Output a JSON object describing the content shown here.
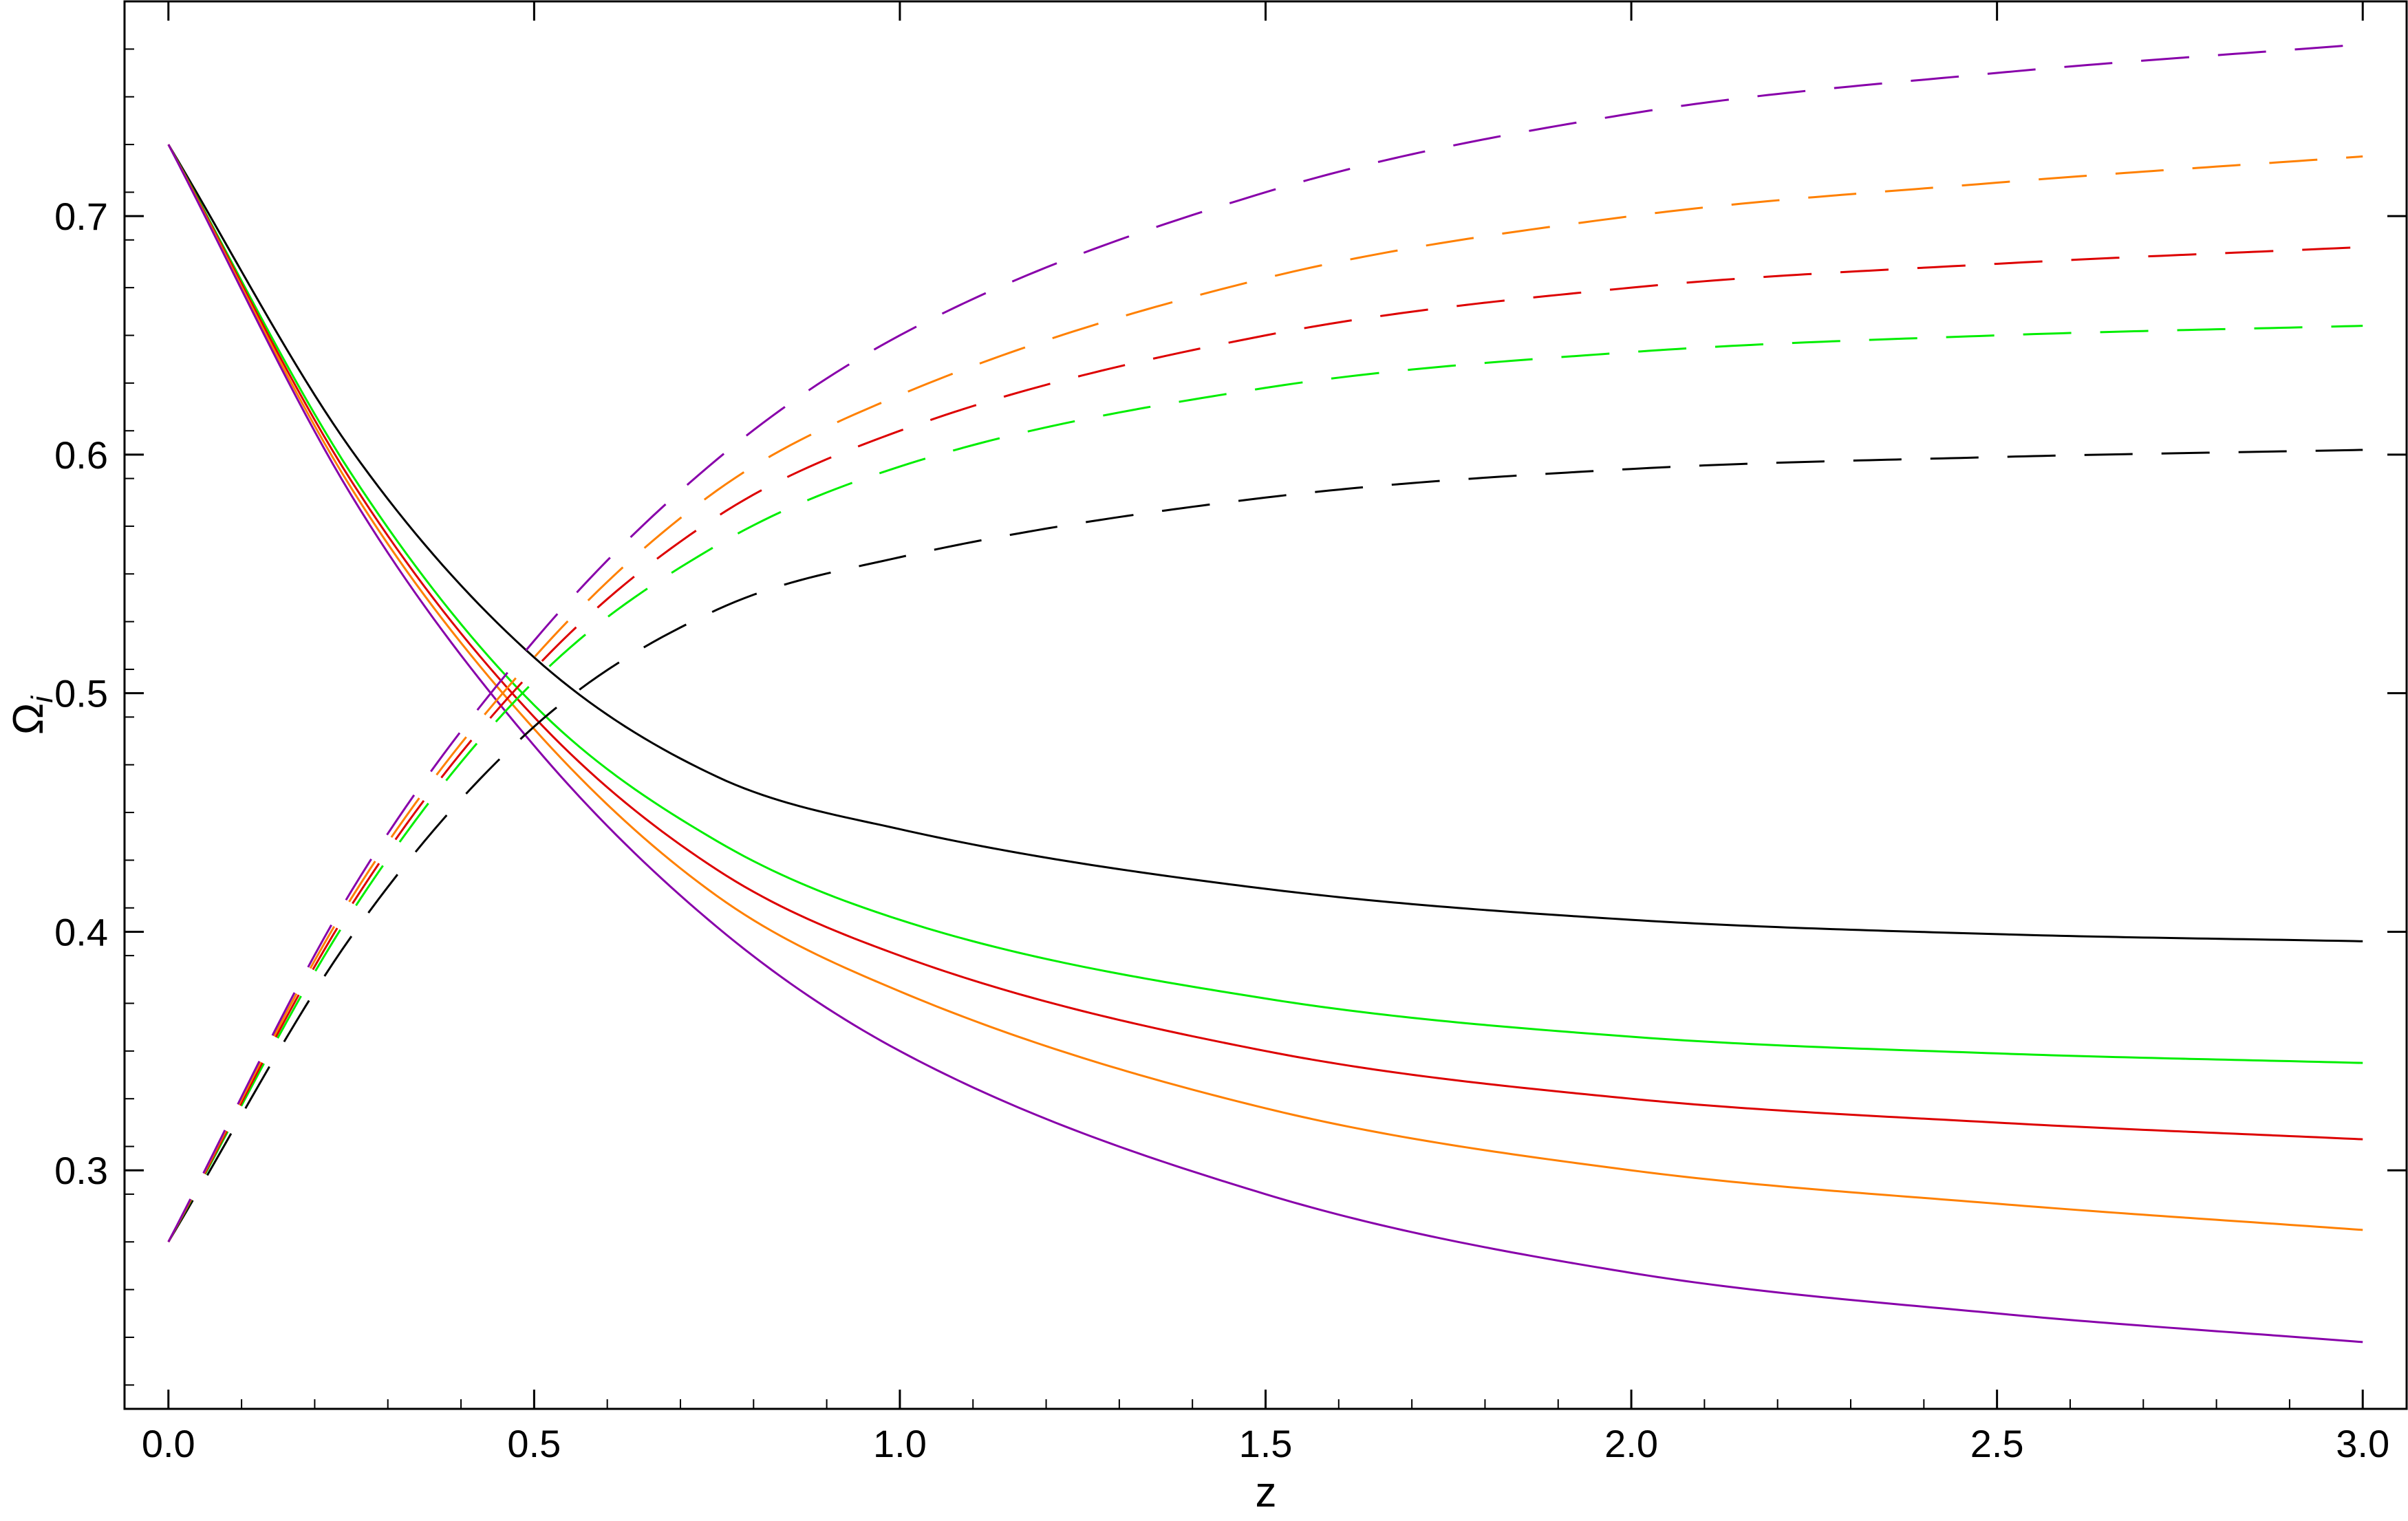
{
  "chart_data": {
    "type": "line",
    "title": "",
    "xlabel": "z",
    "ylabel": "Ω",
    "ylabel_subscript": "i",
    "xlim": [
      -0.06,
      3.06
    ],
    "ylim": [
      0.2,
      0.79
    ],
    "x_ticks": [
      0.0,
      0.5,
      1.0,
      1.5,
      2.0,
      2.5,
      3.0
    ],
    "x_tick_labels": [
      "0.0",
      "0.5",
      "1.0",
      "1.5",
      "2.0",
      "2.5",
      "3.0"
    ],
    "y_ticks": [
      0.3,
      0.4,
      0.5,
      0.6,
      0.7
    ],
    "y_tick_labels": [
      "0.3",
      "0.4",
      "0.5",
      "0.6",
      "0.7"
    ],
    "grid": false,
    "legend": "none",
    "x": [
      0.0,
      0.25,
      0.5,
      0.75,
      1.0,
      1.5,
      2.0,
      2.5,
      3.0
    ],
    "series": [
      {
        "color": "#000000",
        "style": "solid",
        "values": [
          0.73,
          0.602,
          0.515,
          0.465,
          0.443,
          0.418,
          0.405,
          0.399,
          0.396
        ]
      },
      {
        "color": "#00ee00",
        "style": "solid",
        "values": [
          0.73,
          0.592,
          0.495,
          0.438,
          0.405,
          0.372,
          0.356,
          0.349,
          0.345
        ]
      },
      {
        "color": "#dd0000",
        "style": "solid",
        "values": [
          0.73,
          0.589,
          0.49,
          0.426,
          0.39,
          0.35,
          0.33,
          0.32,
          0.313
        ]
      },
      {
        "color": "#ff8000",
        "style": "solid",
        "values": [
          0.73,
          0.586,
          0.485,
          0.415,
          0.375,
          0.326,
          0.3,
          0.286,
          0.275
        ]
      },
      {
        "color": "#8800aa",
        "style": "solid",
        "values": [
          0.73,
          0.583,
          0.478,
          0.402,
          0.35,
          0.29,
          0.257,
          0.24,
          0.228
        ]
      },
      {
        "color": "#000000",
        "style": "dashed",
        "values": [
          0.27,
          0.398,
          0.486,
          0.535,
          0.557,
          0.582,
          0.594,
          0.599,
          0.602
        ]
      },
      {
        "color": "#00ee00",
        "style": "dashed",
        "values": [
          0.27,
          0.408,
          0.505,
          0.562,
          0.595,
          0.628,
          0.643,
          0.65,
          0.654
        ]
      },
      {
        "color": "#dd0000",
        "style": "dashed",
        "values": [
          0.27,
          0.411,
          0.51,
          0.574,
          0.61,
          0.65,
          0.67,
          0.68,
          0.687
        ]
      },
      {
        "color": "#ff8000",
        "style": "dashed",
        "values": [
          0.27,
          0.414,
          0.515,
          0.585,
          0.625,
          0.674,
          0.7,
          0.714,
          0.725
        ]
      },
      {
        "color": "#8800aa",
        "style": "dashed",
        "values": [
          0.27,
          0.417,
          0.522,
          0.598,
          0.65,
          0.71,
          0.743,
          0.76,
          0.772
        ]
      }
    ]
  }
}
